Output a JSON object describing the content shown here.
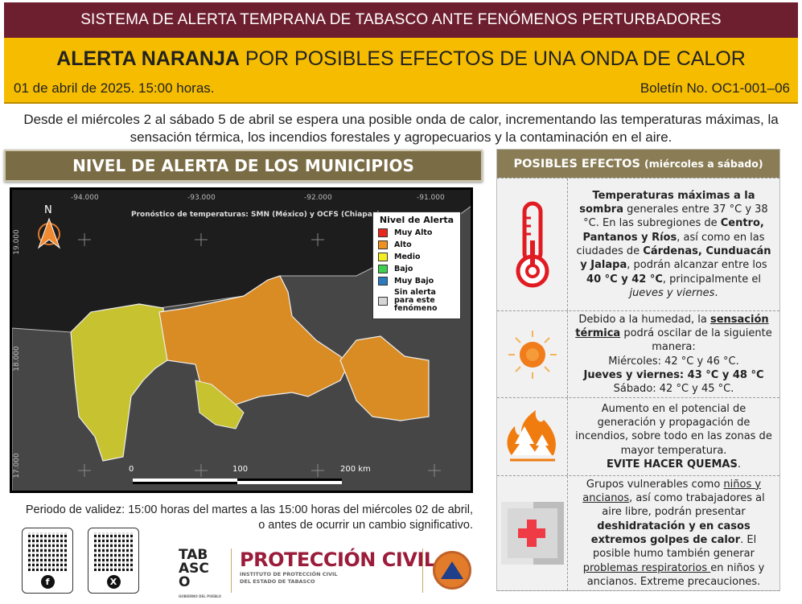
{
  "header": {
    "system": "SISTEMA DE ALERTA TEMPRANA DE TABASCO ANTE FENÓMENOS PERTURBADORES",
    "alert_bold": "ALERTA NARANJA",
    "alert_rest": " POR POSIBLES EFECTOS DE UNA ONDA DE CALOR",
    "date": "01 de abril de 2025. 15:00 horas.",
    "bulletin": "Boletín No. OC1-001–06",
    "alert_color": "#f6bd00",
    "brand_color": "#6e1f2f"
  },
  "intro": "Desde el miércoles 2 al sábado 5 de abril se espera una posible onda de calor, incrementando las temperaturas máximas, la sensación térmica, los incendios forestales y agropecuarios y la contaminación en el aire.",
  "map": {
    "heading": "NIVEL DE ALERTA DE LOS MUNICIPIOS",
    "credit": "Pronóstico de temperaturas: SMN (México) y OCFS (Chiapas).",
    "north": "N",
    "lon_ticks": [
      "-94.000",
      "-93.000",
      "-92.000",
      "-91.000"
    ],
    "lat_ticks": [
      "19.000",
      "18.000",
      "17.000"
    ],
    "scale": [
      "0",
      "100",
      "200 km"
    ],
    "legend": {
      "title": "Nivel de Alerta",
      "items": [
        {
          "label": "Muy Alto",
          "color": "#e8261c"
        },
        {
          "label": "Alto",
          "color": "#f0901e"
        },
        {
          "label": "Medio",
          "color": "#f2ee22"
        },
        {
          "label": "Bajo",
          "color": "#3fcf4f"
        },
        {
          "label": "Muy Bajo",
          "color": "#2b7bc0"
        },
        {
          "label": "Sin alerta para este fenómeno",
          "color": "#d6d6d6"
        }
      ]
    },
    "alto_color": "#d98b24",
    "medio_color": "#c6c230"
  },
  "validity": {
    "line1": "Periodo de validez: 15:00 horas del martes a las 15:00 horas del miércoles 02 de abril,",
    "line2": "o antes de ocurrir un cambio significativo."
  },
  "footer": {
    "qr_facebook": "f",
    "qr_x": "X",
    "tabasco_logo": "TABASCO",
    "tabasco_sub": "GOBIERNO DEL PUEBLO",
    "pc_title": "PROTECCIÓN CIVIL",
    "pc_sub1": "INSTITUTO DE PROTECCIÓN CIVIL",
    "pc_sub2": "DEL ESTADO DE TABASCO"
  },
  "effects": {
    "heading": "POSIBLES EFECTOS",
    "heading_sub": "(miércoles a sábado)",
    "rows": [
      {
        "icon": "thermometer-icon",
        "t1": "Temperaturas máximas a la sombra",
        "t2": " generales entre 37 °C y 38 °C. En las subregiones de ",
        "t3": "Centro, Pantanos y Ríos",
        "t4": ", así como en las ciudades de ",
        "t5": "Cárdenas, Cunduacán y Jalapa",
        "t6": ", podrán alcanzar entre los ",
        "t7": "40 °C y 42 °C",
        "t8": ", principalmente el ",
        "t9": "jueves y viernes",
        "t10": "."
      },
      {
        "icon": "sun-icon",
        "t1": "Debido a la humedad, la ",
        "t2": "sensación térmica",
        "t3": " podrá oscilar de la siguiente manera:",
        "t4": "Miércoles: 42 °C y 46 °C.",
        "t5": "Jueves y viernes: 43 °C y 48 °C",
        "t6": "Sábado: 42 °C y 45 °C."
      },
      {
        "icon": "forest-fire-icon",
        "t1": "Aumento en el potencial de generación y propagación de incendios, sobre todo en las zonas de mayor temperatura.",
        "t2": "EVITE HACER QUEMAS",
        "t3": "."
      },
      {
        "icon": "first-aid-kit-icon",
        "t1": "Grupos vulnerables como ",
        "t2": "niños y ancianos",
        "t3": ", así como trabajadores al aire libre, podrán presentar ",
        "t4": "deshidratación y en casos extremos golpes de calor",
        "t5": ". El posible humo también generar ",
        "t6": "problemas respiratorios ",
        "t7": "en niños y ancianos. Extreme precauciones."
      }
    ]
  }
}
